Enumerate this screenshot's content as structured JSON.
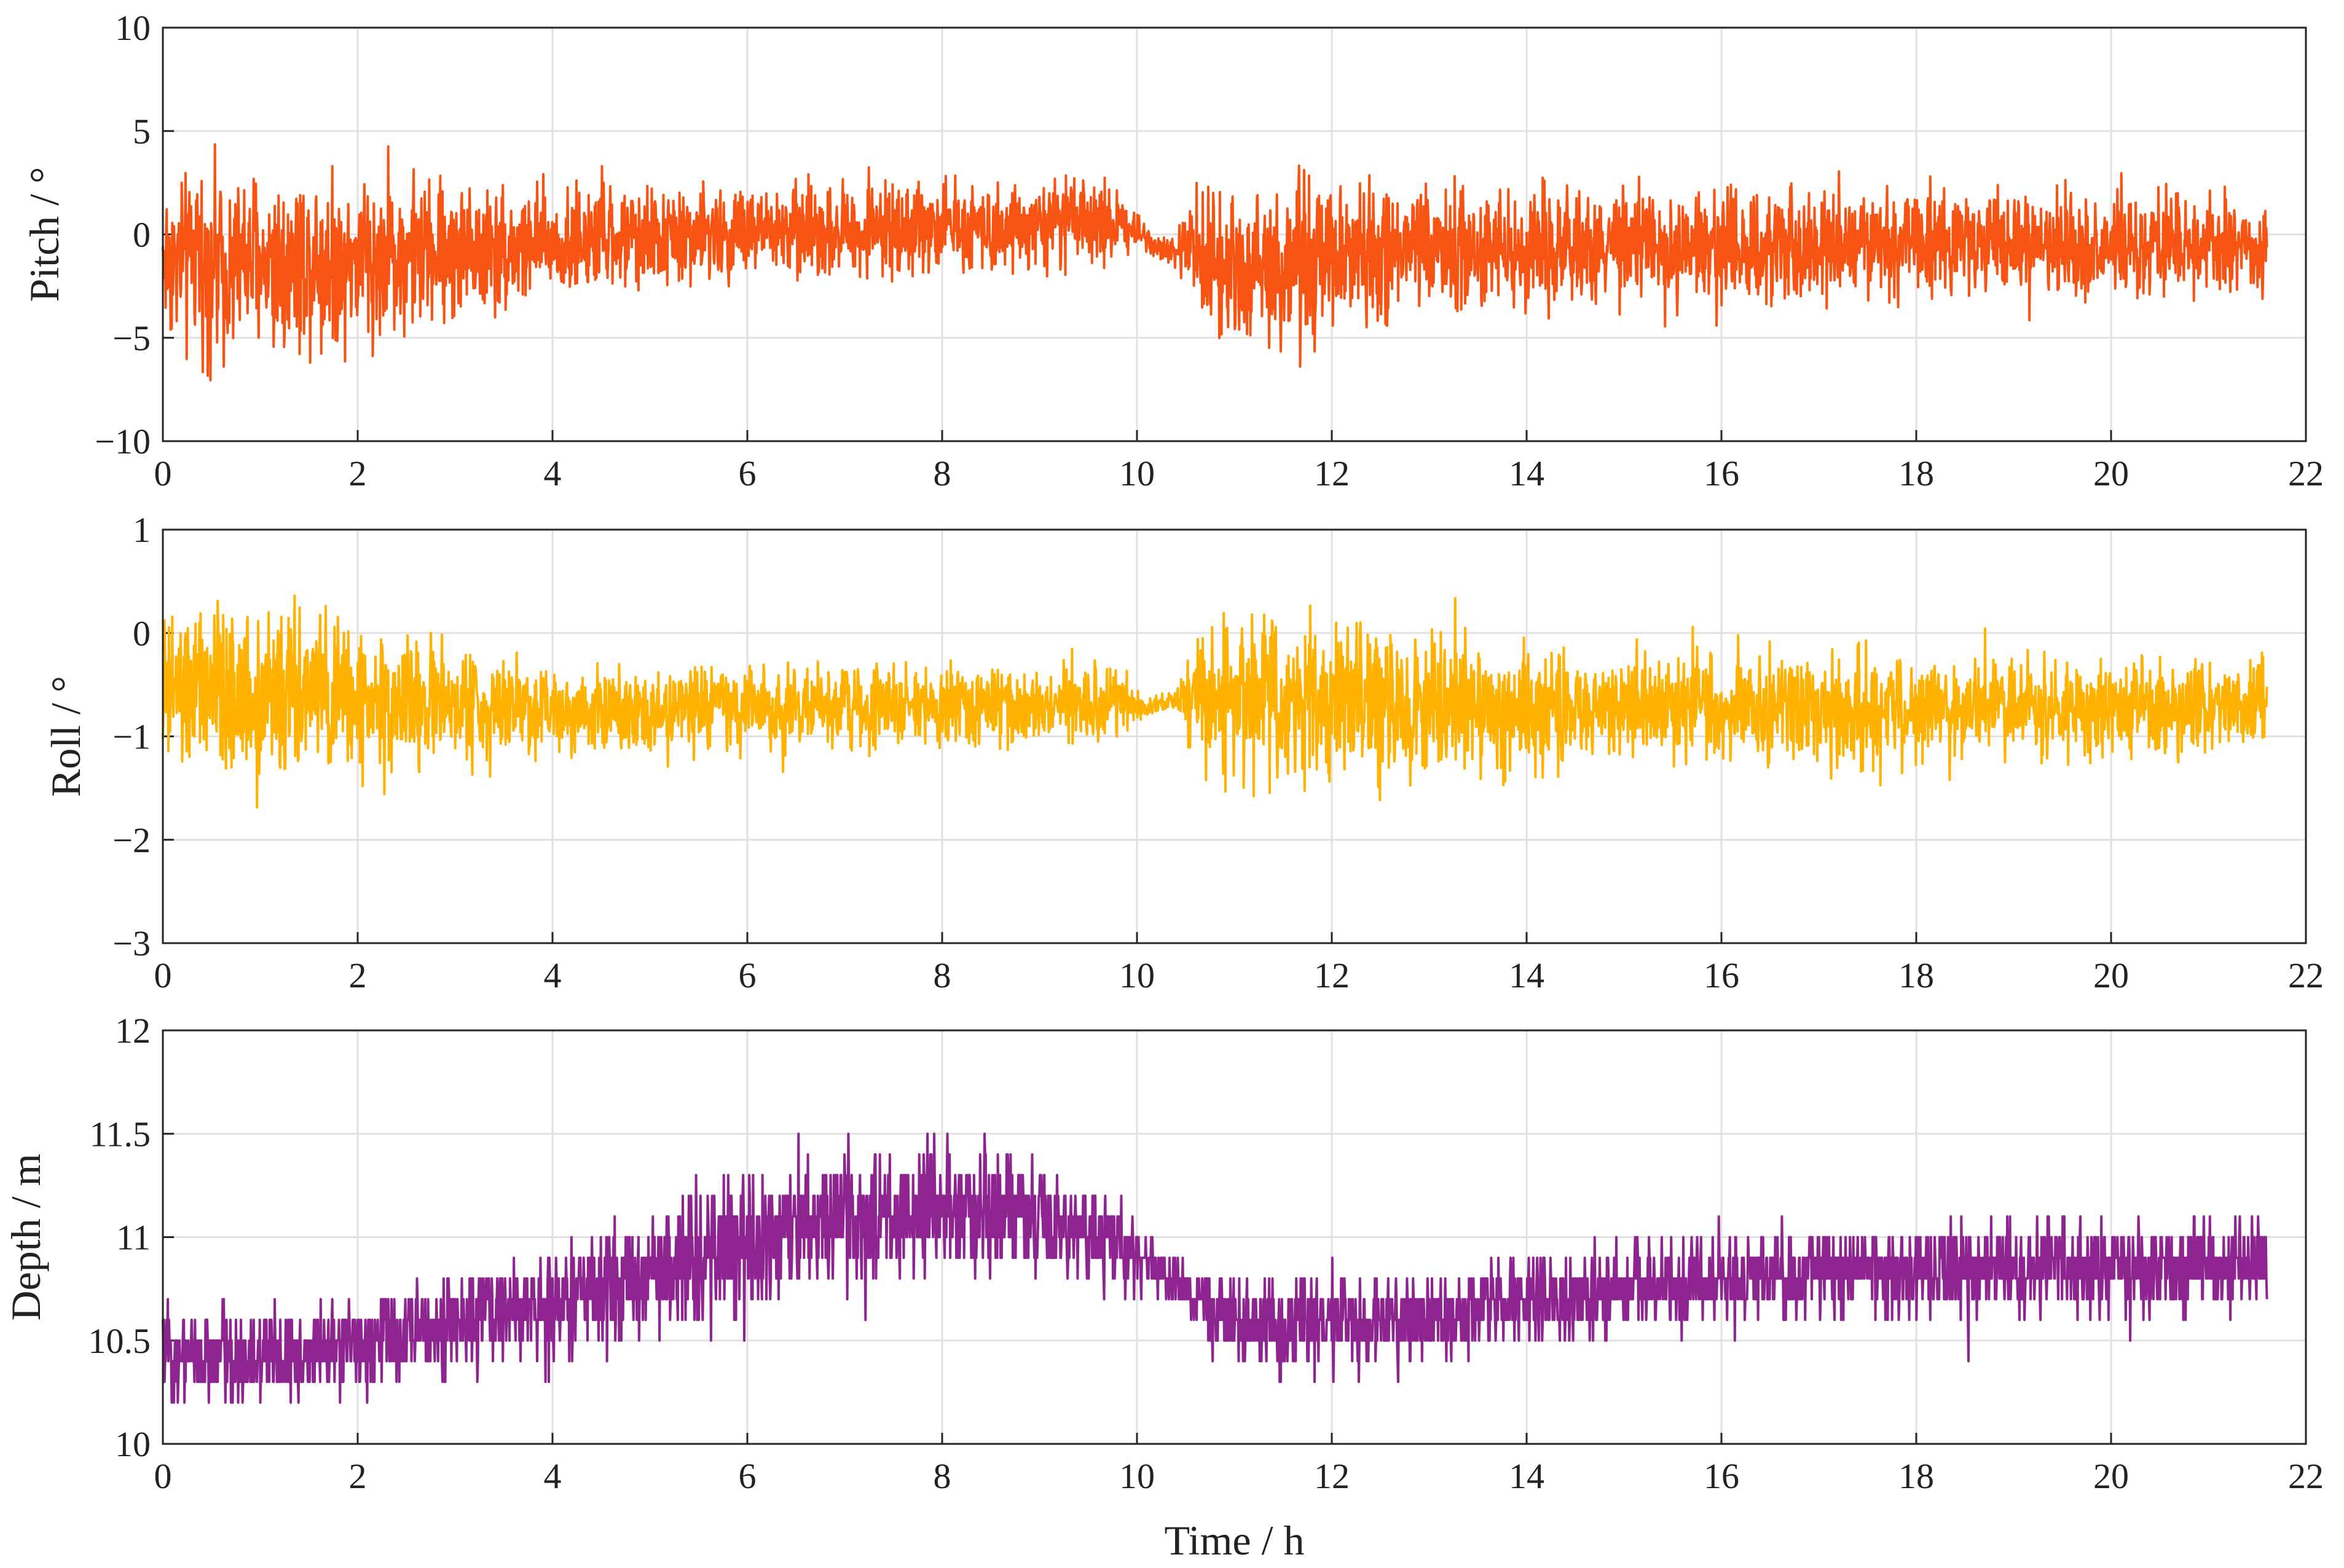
{
  "chart_data": [
    {
      "type": "line",
      "ylabel": "Pitch / °",
      "xlabel": "",
      "xlim": [
        0,
        22
      ],
      "ylim": [
        -10,
        10
      ],
      "xticks": [
        "0",
        "2",
        "4",
        "6",
        "8",
        "10",
        "12",
        "14",
        "16",
        "18",
        "20",
        "22"
      ],
      "yticks": [
        "10",
        "5",
        "0",
        "−5",
        "−10"
      ],
      "grid": true,
      "color": "#f75413",
      "series": [
        {
          "x": [
            0,
            0.5,
            1,
            1.5,
            2,
            3,
            4,
            5,
            6,
            7,
            8,
            9,
            9.85,
            10.1,
            10.4,
            10.6,
            11,
            11.5,
            12,
            13,
            14,
            15,
            16,
            17,
            18,
            19,
            20,
            21,
            21.6
          ],
          "center": [
            -1.2,
            -1.3,
            -1.3,
            -1.2,
            -1.1,
            -0.8,
            -0.5,
            -0.2,
            0.1,
            0.2,
            0.4,
            0.5,
            0.5,
            -0.2,
            -0.8,
            -1.0,
            -1.4,
            -1.6,
            -1.3,
            -0.9,
            -0.7,
            -0.6,
            -0.5,
            -0.4,
            -0.4,
            -0.5,
            -0.6,
            -0.6,
            -0.6
          ],
          "spread": [
            5.5,
            6.2,
            6.5,
            6.3,
            5.8,
            4.8,
            3.9,
            3.4,
            3.2,
            3.2,
            3.0,
            2.9,
            2.7,
            1.1,
            1.0,
            4.2,
            5.2,
            5.7,
            5.3,
            4.4,
            3.9,
            3.8,
            3.9,
            3.9,
            3.8,
            3.7,
            3.6,
            3.5,
            3.4
          ]
        }
      ]
    },
    {
      "type": "line",
      "ylabel": "Roll / °",
      "xlabel": "",
      "xlim": [
        0,
        22
      ],
      "ylim": [
        -3,
        1
      ],
      "xticks": [
        "0",
        "2",
        "4",
        "6",
        "8",
        "10",
        "12",
        "14",
        "16",
        "18",
        "20",
        "22"
      ],
      "yticks": [
        "1",
        "0",
        "−1",
        "−2",
        "−3"
      ],
      "grid": true,
      "color": "#ffb200",
      "series": [
        {
          "x": [
            0,
            0.5,
            1,
            1.5,
            2,
            3,
            4,
            5,
            6,
            7,
            8,
            9,
            9.85,
            10.1,
            10.4,
            10.6,
            11,
            11.5,
            12,
            13,
            14,
            15,
            16,
            17,
            18,
            19,
            20,
            21,
            21.6
          ],
          "center": [
            -0.6,
            -0.6,
            -0.6,
            -0.6,
            -0.65,
            -0.7,
            -0.72,
            -0.73,
            -0.72,
            -0.72,
            -0.72,
            -0.72,
            -0.72,
            -0.7,
            -0.65,
            -0.65,
            -0.65,
            -0.65,
            -0.7,
            -0.72,
            -0.72,
            -0.72,
            -0.72,
            -0.72,
            -0.72,
            -0.72,
            -0.72,
            -0.72,
            -0.72
          ],
          "spread": [
            1.1,
            1.2,
            1.15,
            1.1,
            1.0,
            0.8,
            0.6,
            0.55,
            0.55,
            0.55,
            0.55,
            0.55,
            0.55,
            0.18,
            0.15,
            0.9,
            1.1,
            1.2,
            1.15,
            0.95,
            0.8,
            0.75,
            0.75,
            0.75,
            0.72,
            0.7,
            0.68,
            0.65,
            0.62
          ]
        }
      ]
    },
    {
      "type": "line",
      "ylabel": "Depth / m",
      "xlabel": "Time / h",
      "xlim": [
        0,
        22
      ],
      "ylim": [
        10,
        12
      ],
      "xticks": [
        "0",
        "2",
        "4",
        "6",
        "8",
        "10",
        "12",
        "14",
        "16",
        "18",
        "20",
        "22"
      ],
      "yticks": [
        "12",
        "11.5",
        "11",
        "10.5",
        "10"
      ],
      "grid": true,
      "color": "#8e2490",
      "series": [
        {
          "x": [
            0,
            0.5,
            1,
            1.5,
            2,
            3,
            4,
            5,
            5.5,
            6,
            7,
            8,
            9,
            9.8,
            10.2,
            10.6,
            11,
            11.5,
            12,
            13,
            14,
            15,
            16,
            17,
            18,
            19,
            20,
            21,
            21.6
          ],
          "center": [
            10.45,
            10.42,
            10.42,
            10.44,
            10.48,
            10.58,
            10.68,
            10.82,
            10.9,
            10.98,
            11.1,
            11.12,
            11.08,
            10.98,
            10.85,
            10.7,
            10.58,
            10.55,
            10.57,
            10.62,
            10.68,
            10.75,
            10.8,
            10.82,
            10.83,
            10.84,
            10.85,
            10.86,
            10.87
          ],
          "spread": [
            0.3,
            0.33,
            0.33,
            0.32,
            0.32,
            0.33,
            0.36,
            0.42,
            0.5,
            0.52,
            0.45,
            0.42,
            0.4,
            0.3,
            0.15,
            0.22,
            0.32,
            0.35,
            0.33,
            0.3,
            0.3,
            0.32,
            0.33,
            0.33,
            0.33,
            0.32,
            0.32,
            0.32,
            0.32
          ]
        }
      ]
    }
  ]
}
